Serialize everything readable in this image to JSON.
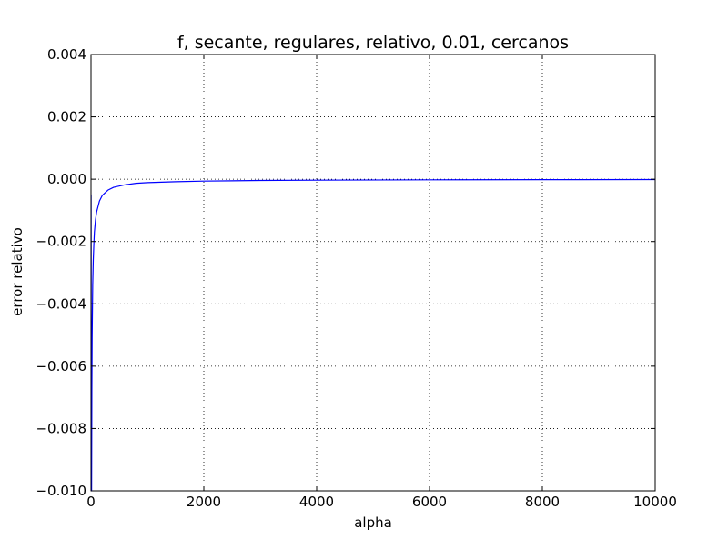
{
  "chart_data": {
    "type": "line",
    "title": "f, secante, regulares, relativo, 0.01, cercanos",
    "xlabel": "alpha",
    "ylabel": "error relativo",
    "xlim": [
      0,
      10000
    ],
    "ylim": [
      -0.01,
      0.004
    ],
    "xticks": [
      0,
      2000,
      4000,
      6000,
      8000,
      10000
    ],
    "xtick_labels": [
      "0",
      "2000",
      "4000",
      "6000",
      "8000",
      "10000"
    ],
    "yticks": [
      -0.01,
      -0.008,
      -0.006,
      -0.004,
      -0.002,
      0.0,
      0.002,
      0.004
    ],
    "ytick_labels": [
      "−0.010",
      "−0.008",
      "−0.006",
      "−0.004",
      "−0.002",
      "0.000",
      "0.002",
      "0.004"
    ],
    "grid": true,
    "series": [
      {
        "color": "#0000ff",
        "x": [
          0,
          2,
          5,
          10,
          15,
          20,
          30,
          40,
          50,
          60,
          80,
          100,
          150,
          200,
          300,
          400,
          600,
          800,
          1000,
          1500,
          2000,
          3000,
          4000,
          6000,
          8000,
          10000
        ],
        "y": [
          -0.0005,
          -0.0005,
          -0.0075,
          -0.01,
          -0.0068,
          -0.0051,
          -0.0034,
          -0.0026,
          -0.0021,
          -0.0017,
          -0.0013,
          -0.00105,
          -0.0007,
          -0.00052,
          -0.00035,
          -0.00026,
          -0.00018,
          -0.00013,
          -0.00011,
          -8e-05,
          -6e-05,
          -4e-05,
          -3e-05,
          -2e-05,
          -1.5e-05,
          -1e-05
        ]
      }
    ]
  }
}
